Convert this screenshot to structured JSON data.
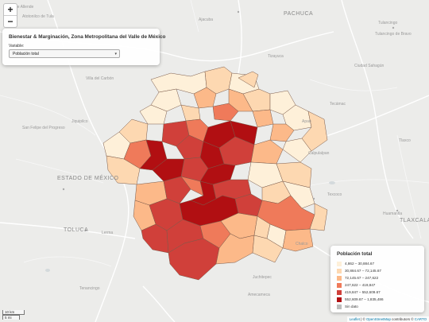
{
  "zoom": {
    "in_label": "+",
    "out_label": "−"
  },
  "panel": {
    "title": "Bienestar & Marginación, Zona Metropolitana del Valle de México",
    "variable_label": "Variable:",
    "selected": "Población total"
  },
  "legend": {
    "title": "Población total",
    "items": [
      {
        "label": "4,862 – 30,884.67",
        "color": "#fef0d9"
      },
      {
        "label": "30,884.67 – 72,145.67",
        "color": "#fdd8b1"
      },
      {
        "label": "72,145.67 – 247,622",
        "color": "#fcb989"
      },
      {
        "label": "247,622 – 419,847",
        "color": "#ef7a5a"
      },
      {
        "label": "419,847 – 552,609.67",
        "color": "#d0403a"
      },
      {
        "label": "552,609.67 – 1,835,486",
        "color": "#b10f12"
      },
      {
        "label": "Sin dato",
        "color": "#bdbdbd"
      }
    ]
  },
  "scale": {
    "metric": "10 km",
    "imperial": "5 mi"
  },
  "attribution": {
    "leaflet": "Leaflet",
    "sep": " | © ",
    "osm": "OpenStreetMap",
    "contrib": " contributors © ",
    "carto": "CARTO"
  },
  "basemap_labels": [
    {
      "text": "PACHUCA",
      "cls": "big"
    },
    {
      "text": "Tula de Allende",
      "cls": ""
    },
    {
      "text": "ESTADO DE MÉXICO",
      "cls": "big"
    },
    {
      "text": "TOLUCA",
      "cls": "big"
    },
    {
      "text": "TLAXCALA",
      "cls": "big"
    },
    {
      "text": "Calpulalpan",
      "cls": ""
    },
    {
      "text": "Tulancingo",
      "cls": ""
    },
    {
      "text": "Tulancingo de Bravo",
      "cls": ""
    },
    {
      "text": "Ajacuba",
      "cls": ""
    },
    {
      "text": "Atotonilco de Tula",
      "cls": ""
    },
    {
      "text": "Tizayuca",
      "cls": ""
    },
    {
      "text": "Tecámac",
      "cls": ""
    },
    {
      "text": "Texcoco",
      "cls": ""
    },
    {
      "text": "Chalco",
      "cls": ""
    },
    {
      "text": "Amecameca",
      "cls": ""
    },
    {
      "text": "Lerma",
      "cls": ""
    },
    {
      "text": "Tenancingo",
      "cls": ""
    },
    {
      "text": "Jiquipilco",
      "cls": ""
    },
    {
      "text": "San Felipe del Progreso",
      "cls": ""
    },
    {
      "text": "Villa del Carbón",
      "cls": ""
    },
    {
      "text": "Ciudad Sahagún",
      "cls": ""
    },
    {
      "text": "Apan",
      "cls": ""
    },
    {
      "text": "Huamantla",
      "cls": ""
    },
    {
      "text": "Tlaxco",
      "cls": ""
    },
    {
      "text": "Juchitepec",
      "cls": ""
    }
  ]
}
